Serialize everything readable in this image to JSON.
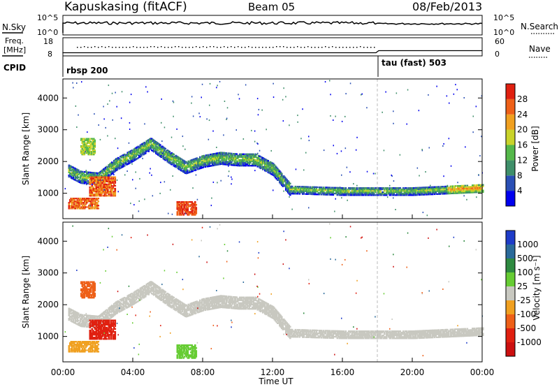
{
  "header": {
    "station": "Kapuskasing (fitACF)",
    "beam": "Beam 05",
    "date": "08/Feb/2013"
  },
  "noise_panel": {
    "left_label": "N.Sky",
    "left_ticks": [
      "10^5",
      "10^0"
    ],
    "right_ticks": [
      "10^5",
      "10^0"
    ],
    "right_label": "N.Search"
  },
  "freq_panel": {
    "left_label_1": "Freq.",
    "left_label_2": "[MHz]",
    "left_ticks": [
      "18",
      "8"
    ],
    "right_ticks": [
      "60",
      "0"
    ],
    "right_label": "Nave"
  },
  "cpid_panel": {
    "label": "CPID",
    "segments": [
      {
        "start": "00:00",
        "name": "rbsp 200"
      },
      {
        "start": "18:00",
        "name": "tau (fast) 503"
      }
    ]
  },
  "chart_data": [
    {
      "type": "heatmap",
      "title": "",
      "ylabel": "Slant Range [km]",
      "xlabel": "Time UT",
      "x_ticks": [
        "00:00",
        "04:00",
        "08:00",
        "12:00",
        "16:00",
        "20:00",
        "00:00"
      ],
      "y_ticks": [
        1000,
        2000,
        3000,
        4000
      ],
      "ylim": [
        200,
        4600
      ],
      "xlim_hours": [
        0,
        24
      ],
      "colorbar": {
        "label": "Power [dB]",
        "ticks": [
          "4",
          "8",
          "12",
          "16",
          "20",
          "24",
          "28"
        ],
        "colors": [
          "#0000ee",
          "#2a4fb5",
          "#3f8f6a",
          "#55b84a",
          "#c9d32a",
          "#f0a020",
          "#ee6018",
          "#e02010"
        ]
      },
      "series": [
        {
          "name": "",
          "x": [
            0.3,
            1.0,
            2.0,
            3.0,
            4.0,
            5.0,
            6.0,
            7.0,
            8.0,
            9.0,
            10.0,
            11.0,
            12.0,
            13.0,
            16.0,
            20.0,
            24.0
          ],
          "y": [
            1700,
            1500,
            1450,
            1900,
            2200,
            2550,
            2150,
            1800,
            2000,
            2100,
            2050,
            2050,
            1750,
            1100,
            1050,
            1050,
            1150
          ]
        }
      ]
    },
    {
      "type": "heatmap",
      "title": "",
      "ylabel": "Slant Range [km]",
      "xlabel": "Time UT",
      "x_ticks": [
        "00:00",
        "04:00",
        "08:00",
        "12:00",
        "16:00",
        "20:00",
        "00:00"
      ],
      "y_ticks": [
        1000,
        2000,
        3000,
        4000
      ],
      "ylim": [
        200,
        4600
      ],
      "colorbar": {
        "label": "Velocity [m s^-1]",
        "ticks": [
          "1000",
          "500",
          "100",
          "25",
          "-25",
          "-100",
          "-500",
          "-1000"
        ],
        "colors": [
          "#1e3cc8",
          "#2a6a9a",
          "#2e8a40",
          "#66cc33",
          "#c8c8c0",
          "#f0a020",
          "#ee6018",
          "#e02010",
          "#cc1010"
        ]
      }
    }
  ]
}
